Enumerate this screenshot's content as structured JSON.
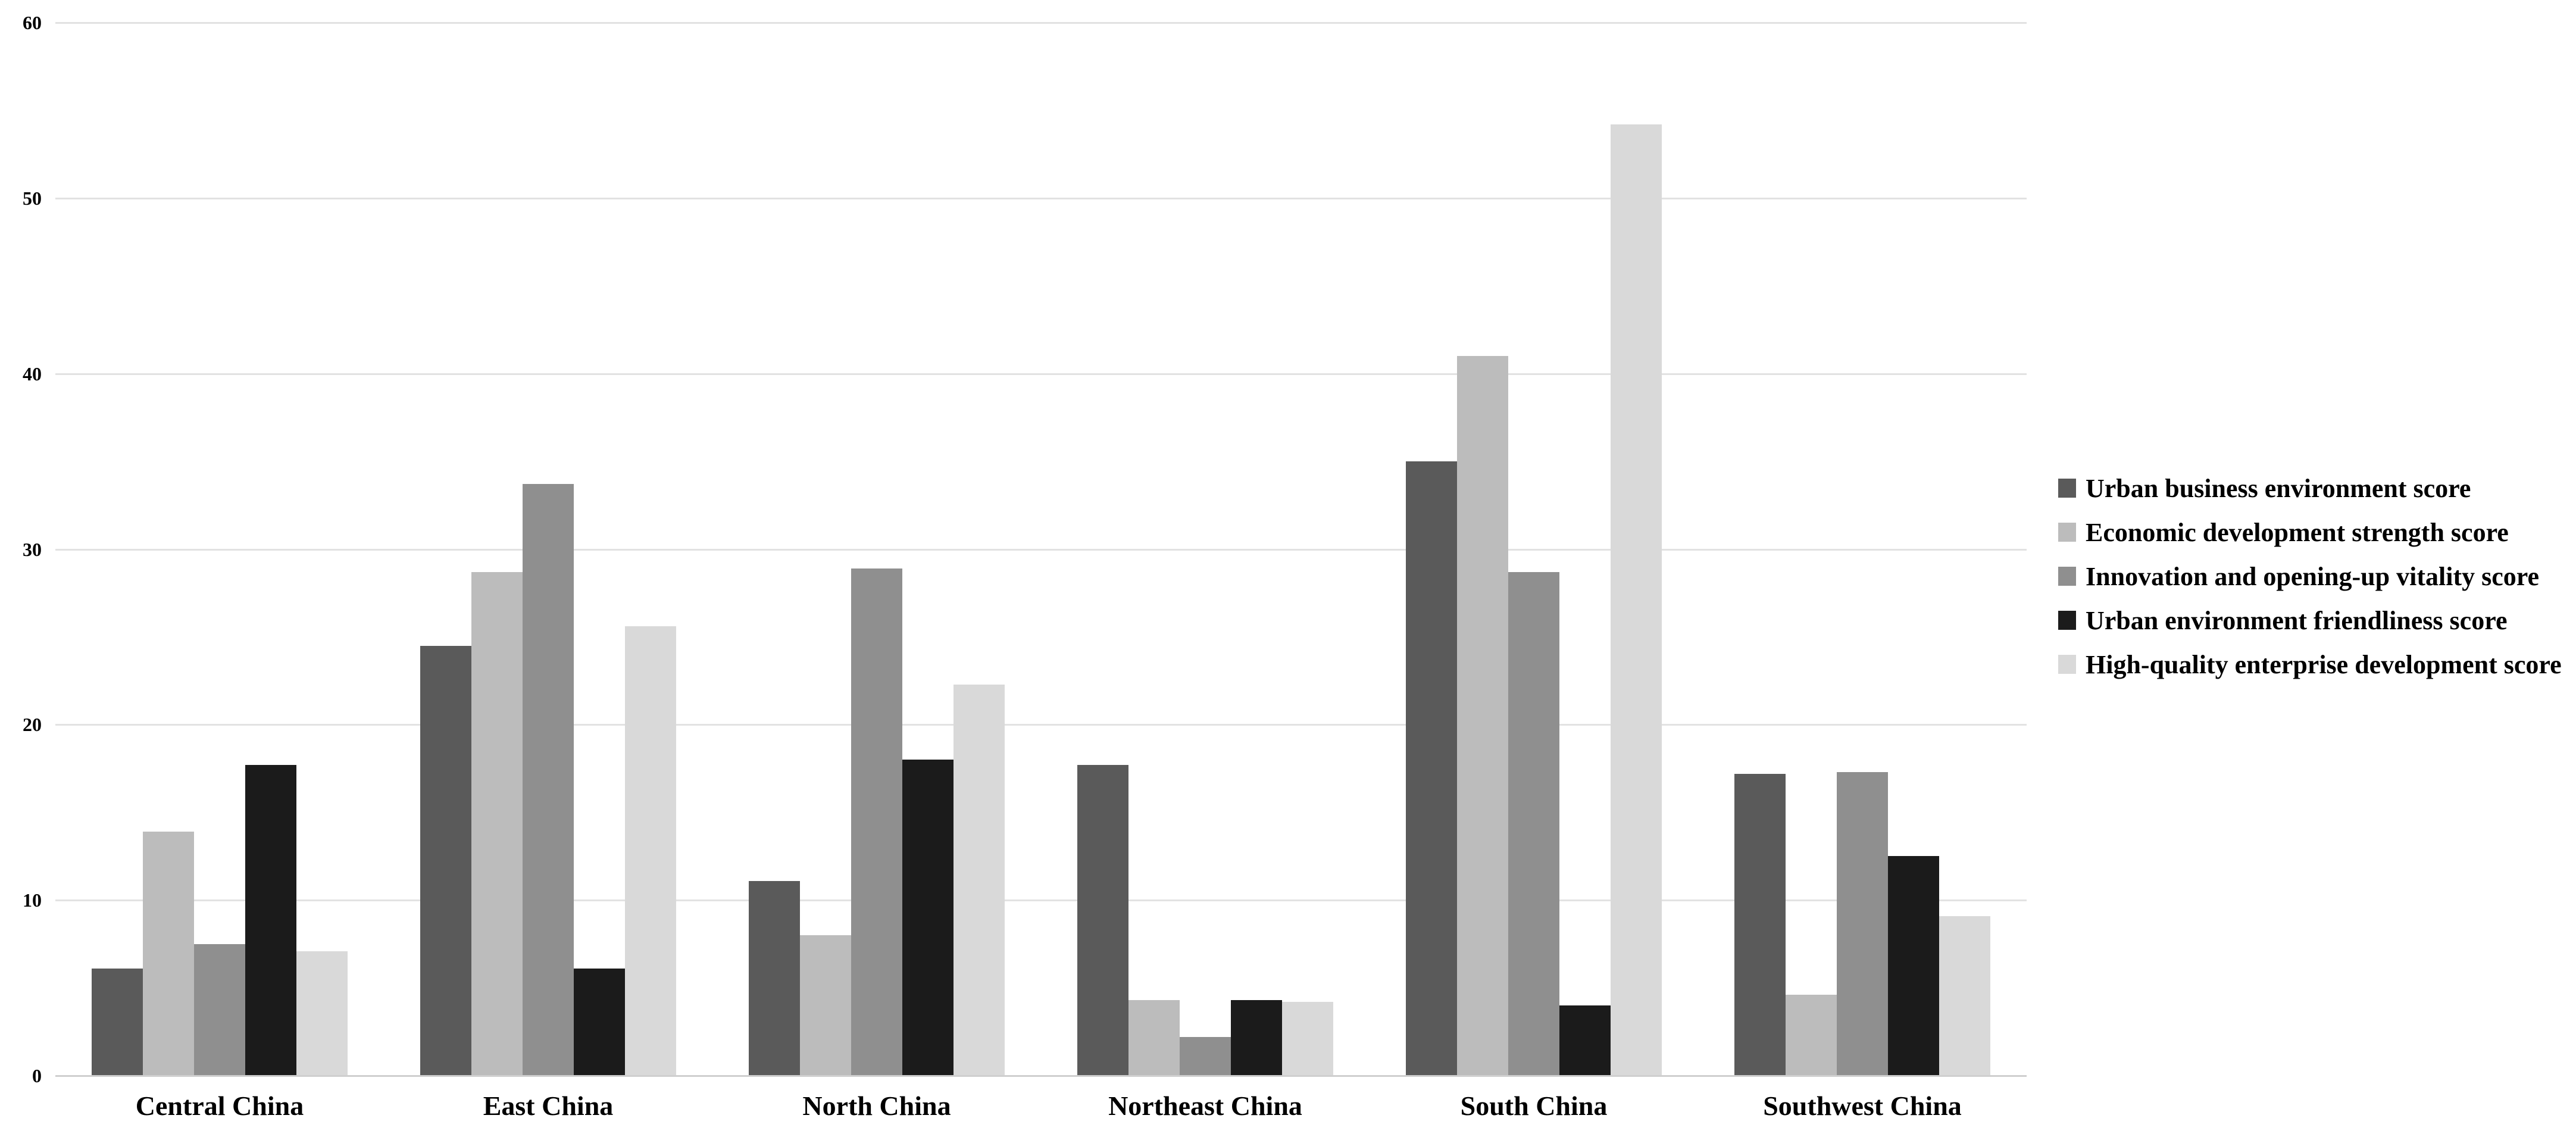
{
  "chart_data": {
    "type": "bar",
    "title": "",
    "xlabel": "",
    "ylabel": "",
    "categories": [
      "Central China",
      "East China",
      "North China",
      "Northeast China",
      "South China",
      "Southwest China"
    ],
    "series": [
      {
        "name": "Urban business environment score",
        "color": "#5a5a5a",
        "values": [
          6.1,
          24.5,
          11.1,
          17.7,
          35.0,
          17.2
        ]
      },
      {
        "name": "Economic development strength score",
        "color": "#bcbcbc",
        "values": [
          13.9,
          28.7,
          8.0,
          4.3,
          41.0,
          4.6
        ]
      },
      {
        "name": "Innovation and opening-up vitality score",
        "color": "#8f8f8f",
        "values": [
          7.5,
          33.7,
          28.9,
          2.2,
          28.7,
          17.3
        ]
      },
      {
        "name": "Urban environment friendliness score",
        "color": "#1b1b1b",
        "values": [
          17.7,
          6.1,
          18.0,
          4.3,
          4.0,
          12.5
        ]
      },
      {
        "name": "High-quality enterprise development score",
        "color": "#d9d9d9",
        "values": [
          7.1,
          25.6,
          22.3,
          4.2,
          54.2,
          9.1
        ]
      }
    ],
    "y_axis": {
      "min": 0,
      "max": 60,
      "tick_step": 10,
      "tick_labels": [
        "0",
        "10",
        "20",
        "30",
        "40",
        "50",
        "60"
      ]
    },
    "grid": true,
    "legend_position": "right",
    "colors": {
      "gridline": "#e2e2e2",
      "baseline": "#cfcfcf",
      "text": "#000000",
      "background": "#ffffff"
    }
  }
}
